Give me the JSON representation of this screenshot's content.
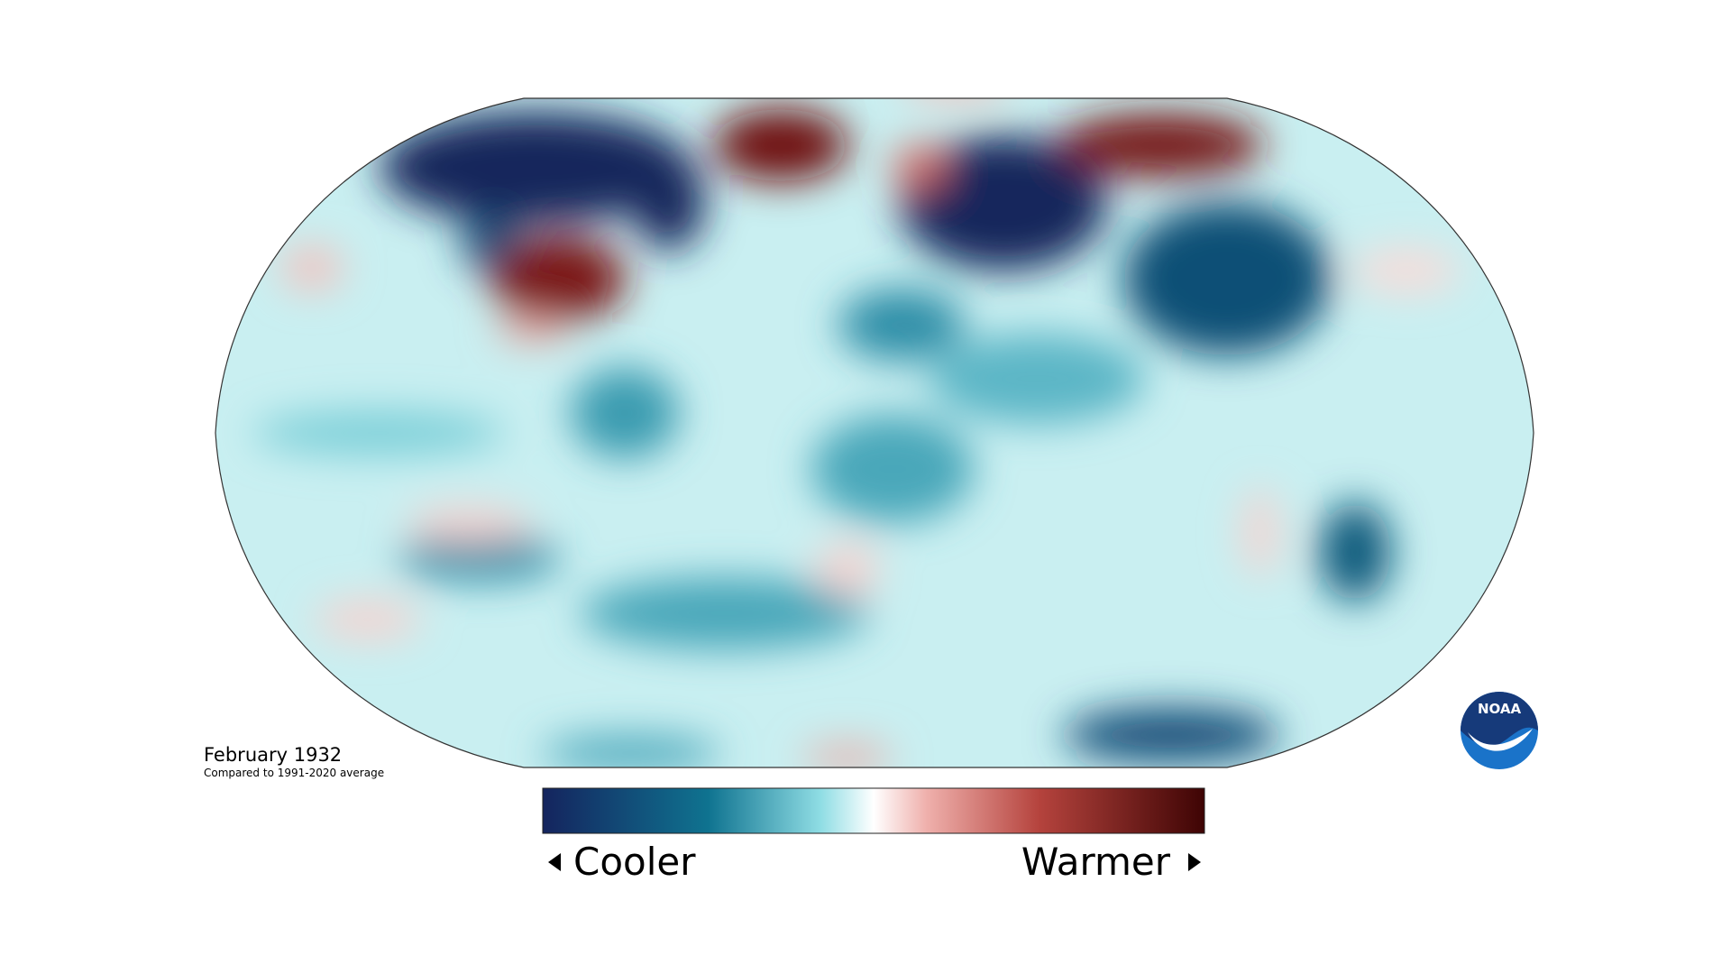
{
  "map": {
    "title": "February 1932",
    "subtitle": "Compared to 1991-2020 average"
  },
  "legend": {
    "low": "Cooler",
    "high": "Warmer"
  },
  "logo": {
    "text": "NOAA"
  }
}
